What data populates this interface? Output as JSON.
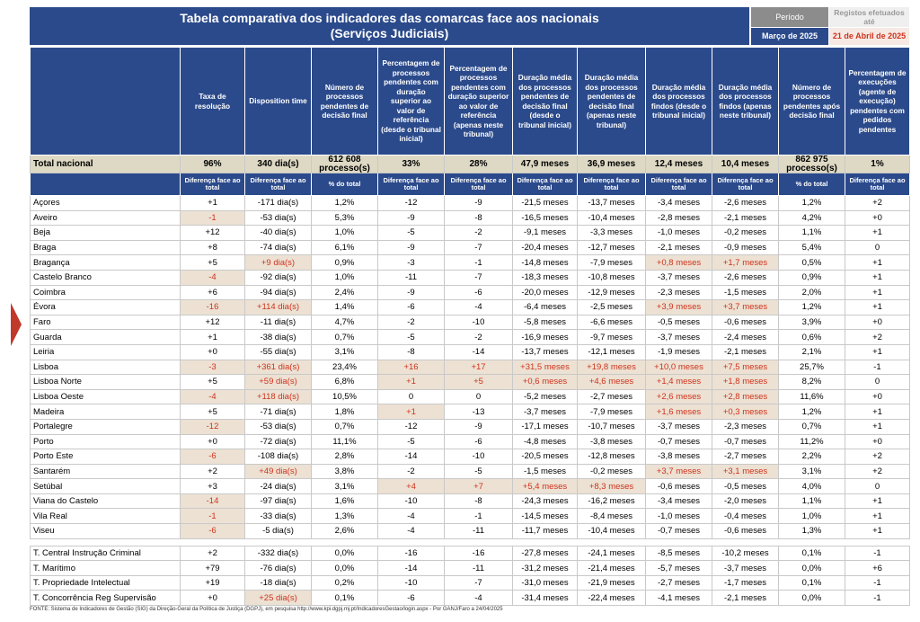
{
  "header": {
    "title_line1": "Tabela comparativa dos indicadores das comarcas face aos nacionais",
    "title_line2": "(Serviços Judiciais)",
    "period_label": "Período",
    "period_value": "Março de 2025",
    "registos_label": "Registos efetuados até",
    "registos_value": "21 de Abril de 2025"
  },
  "columns": [
    "Taxa de resolução",
    "Disposition time",
    "Número de processos pendentes de decisão final",
    "Percentagem de processos pendentes com duração superior ao valor de referência (desde o tribunal inicial)",
    "Percentagem de processos pendentes com duração superior ao valor de referência (apenas neste tribunal)",
    "Duração média dos processos pendentes de decisão final (desde o tribunal inicial)",
    "Duração média dos processos pendentes de decisão final (apenas neste tribunal)",
    "Duração média dos processos findos (desde o tribunal inicial)",
    "Duração média dos processos findos (apenas neste tribunal)",
    "Número de processos pendentes após decisão final",
    "Percentagem de execuções (agente de execução) pendentes com pedidos pendentes"
  ],
  "total": {
    "label": "Total nacional",
    "values": [
      "96%",
      "340 dia(s)",
      "612 608 processo(s)",
      "33%",
      "28%",
      "47,9 meses",
      "36,9 meses",
      "12,4 meses",
      "10,4 meses",
      "862 975 processo(s)",
      "1%"
    ]
  },
  "subheader": [
    "Diferença face ao total",
    "Diferença face ao total",
    "% do total",
    "Diferença face ao total",
    "Diferença face ao total",
    "Diferença face ao total",
    "Diferença face ao total",
    "Diferença face ao total",
    "Diferença face ao total",
    "% do total",
    "Diferença face ao total"
  ],
  "rows": [
    [
      "Açores",
      "+1",
      "-171 dia(s)",
      "1,2%",
      "-12",
      "-9",
      "-21,5 meses",
      "-13,7 meses",
      "-3,4 meses",
      "-2,6 meses",
      "1,2%",
      "+2"
    ],
    [
      "Aveiro",
      "-1",
      "-53 dia(s)",
      "5,3%",
      "-9",
      "-8",
      "-16,5 meses",
      "-10,4 meses",
      "-2,8 meses",
      "-2,1 meses",
      "4,2%",
      "+0"
    ],
    [
      "Beja",
      "+12",
      "-40 dia(s)",
      "1,0%",
      "-5",
      "-2",
      "-9,1 meses",
      "-3,3 meses",
      "-1,0 meses",
      "-0,2 meses",
      "1,1%",
      "+1"
    ],
    [
      "Braga",
      "+8",
      "-74 dia(s)",
      "6,1%",
      "-9",
      "-7",
      "-20,4 meses",
      "-12,7 meses",
      "-2,1 meses",
      "-0,9 meses",
      "5,4%",
      "0"
    ],
    [
      "Bragança",
      "+5",
      "+9 dia(s)",
      "0,9%",
      "-3",
      "-1",
      "-14,8 meses",
      "-7,9 meses",
      "+0,8 meses",
      "+1,7 meses",
      "0,5%",
      "+1"
    ],
    [
      "Castelo Branco",
      "-4",
      "-92 dia(s)",
      "1,0%",
      "-11",
      "-7",
      "-18,3 meses",
      "-10,8 meses",
      "-3,7 meses",
      "-2,6 meses",
      "0,9%",
      "+1"
    ],
    [
      "Coimbra",
      "+6",
      "-94 dia(s)",
      "2,4%",
      "-9",
      "-6",
      "-20,0 meses",
      "-12,9 meses",
      "-2,3 meses",
      "-1,5 meses",
      "2,0%",
      "+1"
    ],
    [
      "Évora",
      "-16",
      "+114 dia(s)",
      "1,4%",
      "-6",
      "-4",
      "-6,4 meses",
      "-2,5 meses",
      "+3,9 meses",
      "+3,7 meses",
      "1,2%",
      "+1"
    ],
    [
      "Faro",
      "+12",
      "-11 dia(s)",
      "4,7%",
      "-2",
      "-10",
      "-5,8 meses",
      "-6,6 meses",
      "-0,5 meses",
      "-0,6 meses",
      "3,9%",
      "+0"
    ],
    [
      "Guarda",
      "+1",
      "-38 dia(s)",
      "0,7%",
      "-5",
      "-2",
      "-16,9 meses",
      "-9,7 meses",
      "-3,7 meses",
      "-2,4 meses",
      "0,6%",
      "+2"
    ],
    [
      "Leiria",
      "+0",
      "-55 dia(s)",
      "3,1%",
      "-8",
      "-14",
      "-13,7 meses",
      "-12,1 meses",
      "-1,9 meses",
      "-2,1 meses",
      "2,1%",
      "+1"
    ],
    [
      "Lisboa",
      "-3",
      "+361 dia(s)",
      "23,4%",
      "+16",
      "+17",
      "+31,5 meses",
      "+19,8 meses",
      "+10,0 meses",
      "+7,5 meses",
      "25,7%",
      "-1"
    ],
    [
      "Lisboa Norte",
      "+5",
      "+59 dia(s)",
      "6,8%",
      "+1",
      "+5",
      "+0,6 meses",
      "+4,6 meses",
      "+1,4 meses",
      "+1,8 meses",
      "8,2%",
      "0"
    ],
    [
      "Lisboa Oeste",
      "-4",
      "+118 dia(s)",
      "10,5%",
      "0",
      "0",
      "-5,2 meses",
      "-2,7 meses",
      "+2,6 meses",
      "+2,8 meses",
      "11,6%",
      "+0"
    ],
    [
      "Madeira",
      "+5",
      "-71 dia(s)",
      "1,8%",
      "+1",
      "-13",
      "-3,7 meses",
      "-7,9 meses",
      "+1,6 meses",
      "+0,3 meses",
      "1,2%",
      "+1"
    ],
    [
      "Portalegre",
      "-12",
      "-53 dia(s)",
      "0,7%",
      "-12",
      "-9",
      "-17,1 meses",
      "-10,7 meses",
      "-3,7 meses",
      "-2,3 meses",
      "0,7%",
      "+1"
    ],
    [
      "Porto",
      "+0",
      "-72 dia(s)",
      "11,1%",
      "-5",
      "-6",
      "-4,8 meses",
      "-3,8 meses",
      "-0,7 meses",
      "-0,7 meses",
      "11,2%",
      "+0"
    ],
    [
      "Porto Este",
      "-6",
      "-108 dia(s)",
      "2,8%",
      "-14",
      "-10",
      "-20,5 meses",
      "-12,8 meses",
      "-3,8 meses",
      "-2,7 meses",
      "2,2%",
      "+2"
    ],
    [
      "Santarém",
      "+2",
      "+49 dia(s)",
      "3,8%",
      "-2",
      "-5",
      "-1,5 meses",
      "-0,2 meses",
      "+3,7 meses",
      "+3,1 meses",
      "3,1%",
      "+2"
    ],
    [
      "Setúbal",
      "+3",
      "-24 dia(s)",
      "3,1%",
      "+4",
      "+7",
      "+5,4 meses",
      "+8,3 meses",
      "-0,6 meses",
      "-0,5 meses",
      "4,0%",
      "0"
    ],
    [
      "Viana do Castelo",
      "-14",
      "-97 dia(s)",
      "1,6%",
      "-10",
      "-8",
      "-24,3 meses",
      "-16,2 meses",
      "-3,4 meses",
      "-2,0 meses",
      "1,1%",
      "+1"
    ],
    [
      "Vila Real",
      "-1",
      "-33 dia(s)",
      "1,3%",
      "-4",
      "-1",
      "-14,5 meses",
      "-8,4 meses",
      "-1,0 meses",
      "-0,4 meses",
      "1,0%",
      "+1"
    ],
    [
      "Viseu",
      "-6",
      "-5 dia(s)",
      "2,6%",
      "-4",
      "-11",
      "-11,7 meses",
      "-10,4 meses",
      "-0,7 meses",
      "-0,6 meses",
      "1,3%",
      "+1"
    ]
  ],
  "tribunals": [
    [
      "T. Central Instrução Criminal",
      "+2",
      "-332 dia(s)",
      "0,0%",
      "-16",
      "-16",
      "-27,8 meses",
      "-24,1 meses",
      "-8,5 meses",
      "-10,2 meses",
      "0,1%",
      "-1"
    ],
    [
      "T. Marítimo",
      "+79",
      "-76 dia(s)",
      "0,0%",
      "-14",
      "-11",
      "-31,2 meses",
      "-21,4 meses",
      "-5,7 meses",
      "-3,7 meses",
      "0,0%",
      "+6"
    ],
    [
      "T. Propriedade Intelectual",
      "+19",
      "-18 dia(s)",
      "0,2%",
      "-10",
      "-7",
      "-31,0 meses",
      "-21,9 meses",
      "-2,7 meses",
      "-1,7 meses",
      "0,1%",
      "-1"
    ],
    [
      "T. Concorrência Reg Supervisão",
      "+0",
      "+25 dia(s)",
      "0,1%",
      "-6",
      "-4",
      "-31,4 meses",
      "-22,4 meses",
      "-4,1 meses",
      "-2,1 meses",
      "0,0%",
      "-1"
    ]
  ],
  "source": "FONTE: Sistema de Indicadores de Gestão (SIG) da Direção-Geral da Política de Justiça (DGPJ), em pesquisa http://www.kpi.dgpj.mj.pt/IndicadoresGestao/login.aspx - Por GANJ/Faro a 24/04/2025"
}
